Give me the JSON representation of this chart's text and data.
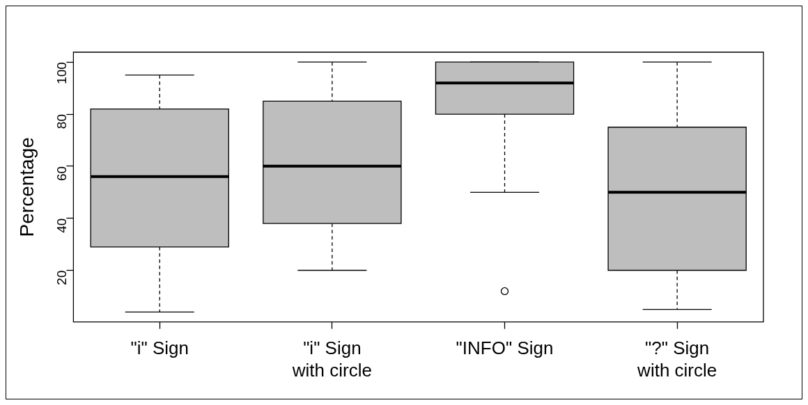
{
  "chart_data": {
    "type": "box",
    "ylabel": "Percentage",
    "categories": [
      "\"i\" Sign",
      "\"i\" Sign\nwith circle",
      "\"INFO\" Sign",
      "\"?\" Sign\nwith circle"
    ],
    "color": "#bebebe",
    "boxes": [
      {
        "low": 4,
        "q1": 29,
        "median": 56,
        "q3": 82,
        "high": 95
      },
      {
        "low": 20,
        "q1": 38,
        "median": 60,
        "q3": 85,
        "high": 100
      },
      {
        "low": 50,
        "q1": 80,
        "median": 92,
        "q3": 100,
        "high": 100,
        "outliers": [
          12
        ]
      },
      {
        "low": 5,
        "q1": 20,
        "median": 50,
        "q3": 75,
        "high": 100
      }
    ],
    "ylim": [
      0.2,
      103.8
    ],
    "yticks": [
      20,
      40,
      60,
      80,
      100
    ]
  }
}
